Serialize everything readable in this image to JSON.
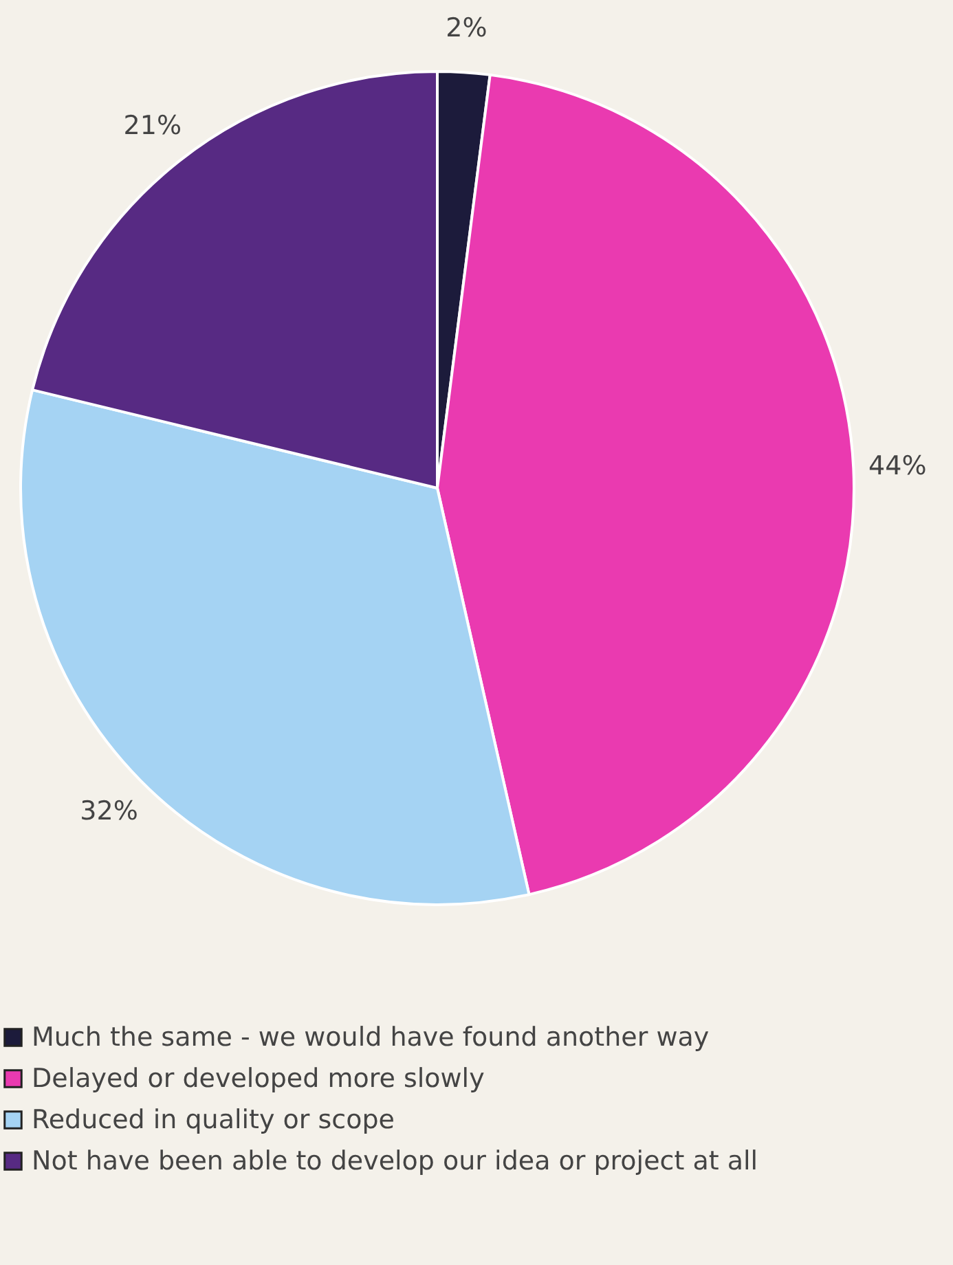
{
  "chart_data": {
    "type": "pie",
    "categories": [
      "Much the same - we would have found another way",
      "Delayed or developed more slowly",
      "Reduced in quality or scope",
      "Not have been able to develop our idea or project at all"
    ],
    "values": [
      2,
      44,
      32,
      21
    ],
    "colors": [
      "#1c1b3b",
      "#ea3ab0",
      "#a5d3f3",
      "#572a83"
    ],
    "value_labels": [
      "2%",
      "44%",
      "32%",
      "21%"
    ],
    "legend": "bottom"
  }
}
